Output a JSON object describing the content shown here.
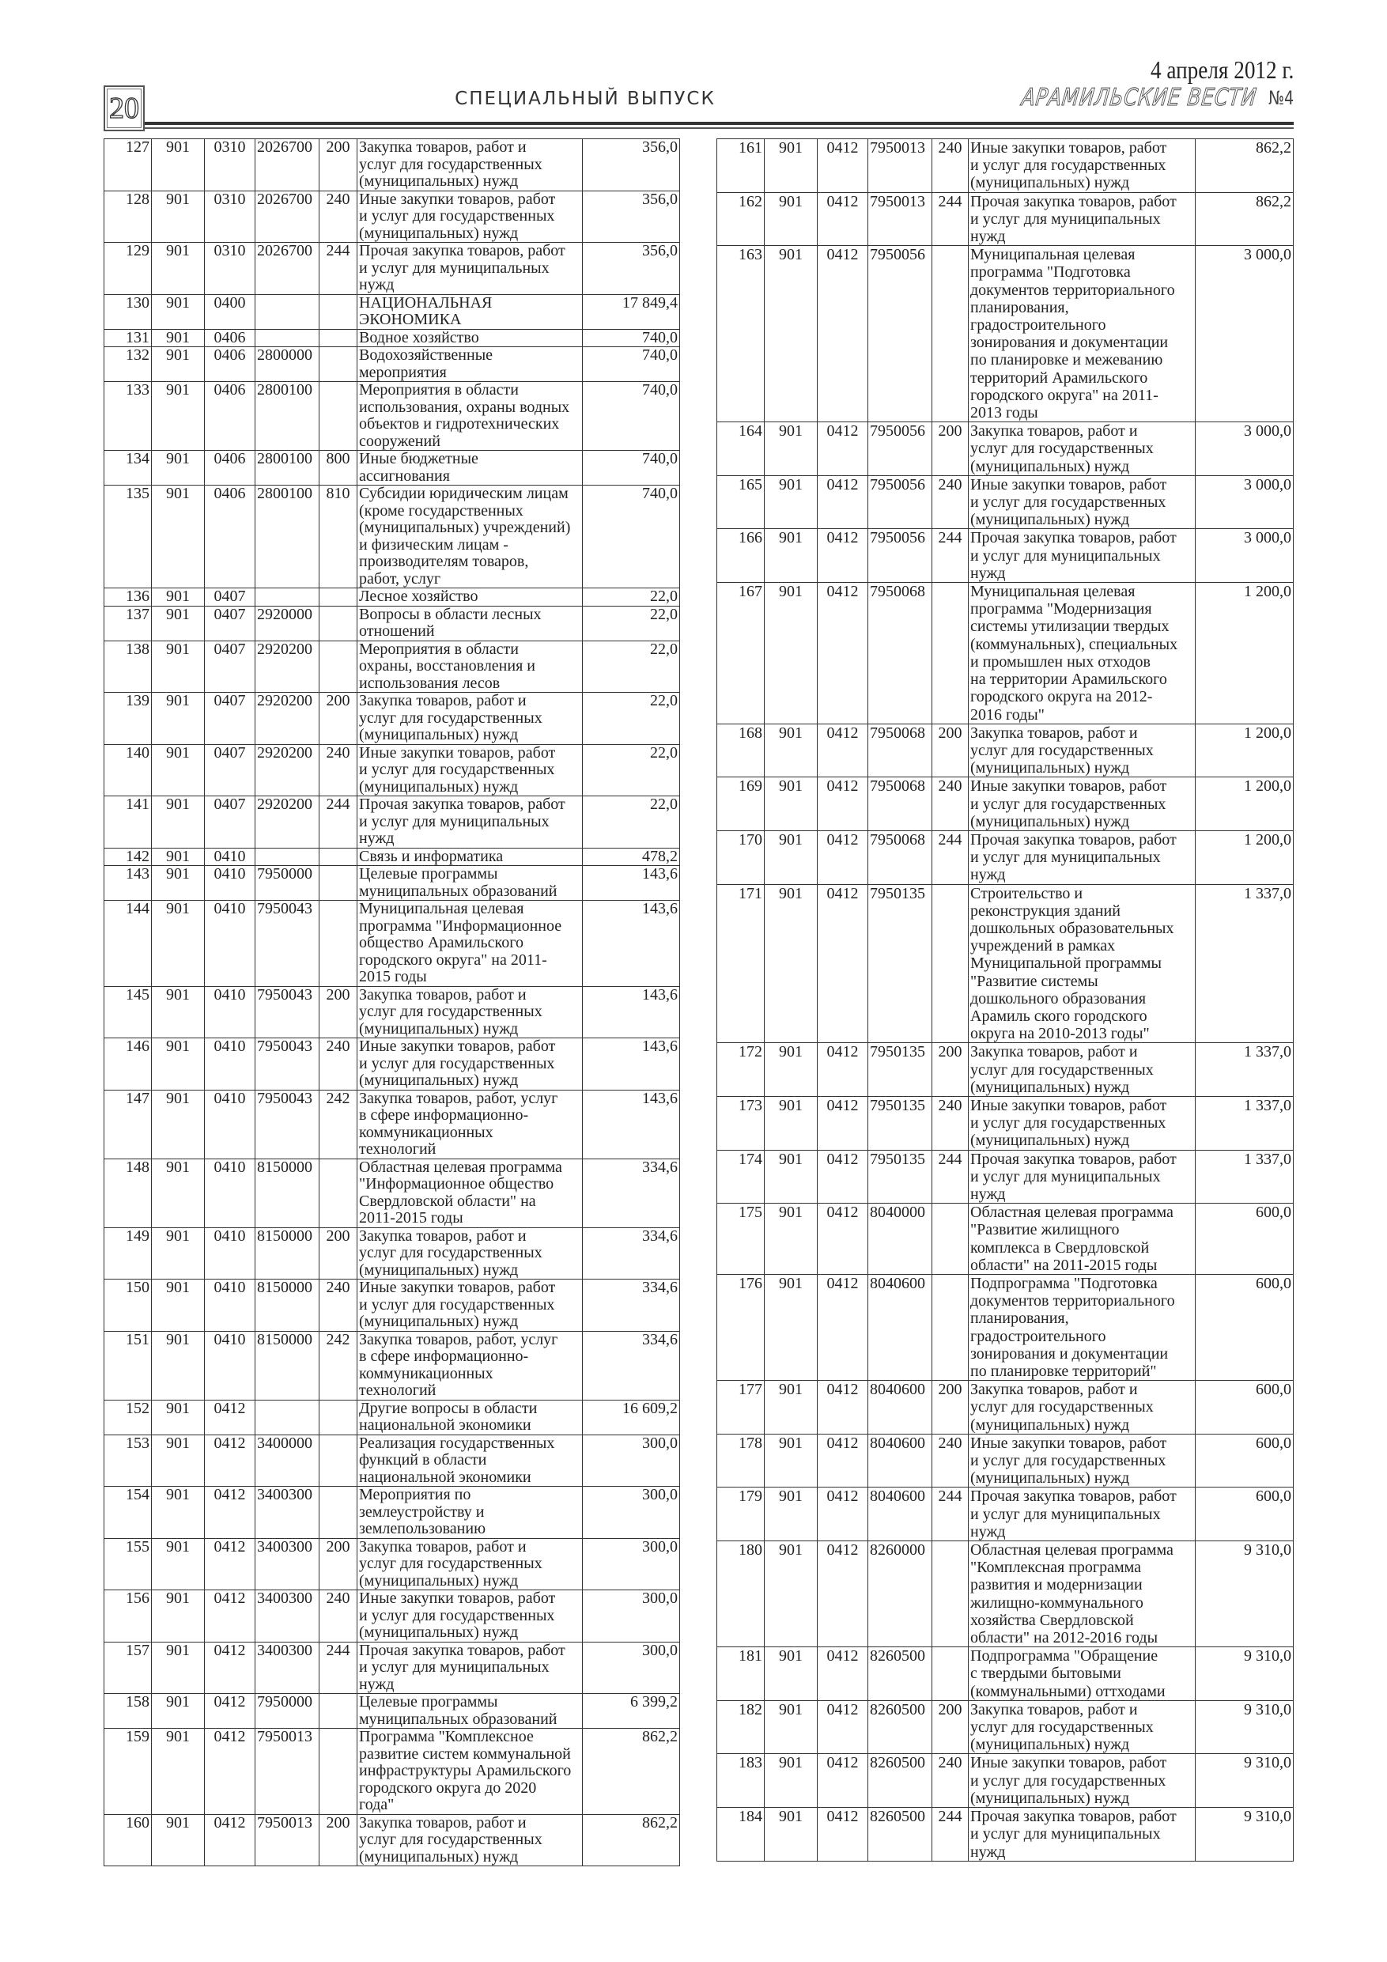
{
  "header": {
    "page_number": "20",
    "section": "СПЕЦИАЛЬНЫЙ ВЫПУСК",
    "date": "4 апреля 2012 г.",
    "newspaper": "АРАМИЛЬСКИЕ ВЕСТИ",
    "issue": "№4"
  },
  "left_table": {
    "rows": [
      [
        "127",
        "901",
        "0310",
        "2026700",
        "200",
        "Закупка товаров, работ и\nуслуг для государственных\n(муниципальных) нужд",
        "356,0"
      ],
      [
        "128",
        "901",
        "0310",
        "2026700",
        "240",
        "Иные закупки товаров, работ\nи услуг для государственных\n(муниципальных) нужд",
        "356,0"
      ],
      [
        "129",
        "901",
        "0310",
        "2026700",
        "244",
        "Прочая закупка товаров, работ\nи услуг для муниципальных\nнужд",
        "356,0"
      ],
      [
        "130",
        "901",
        "0400",
        "",
        "",
        "НАЦИОНАЛЬНАЯ\nЭКОНОМИКА",
        "17 849,4"
      ],
      [
        "131",
        "901",
        "0406",
        "",
        "",
        "Водное хозяйство",
        "740,0"
      ],
      [
        "132",
        "901",
        "0406",
        "2800000",
        "",
        "Водохозяйственные\nмероприятия",
        "740,0"
      ],
      [
        "133",
        "901",
        "0406",
        "2800100",
        "",
        "Мероприятия в области\nиспользования, охраны водных\nобъектов и гидротехнических\nсооружений",
        "740,0"
      ],
      [
        "134",
        "901",
        "0406",
        "2800100",
        "800",
        "Иные бюджетные\nассигнования",
        "740,0"
      ],
      [
        "135",
        "901",
        "0406",
        "2800100",
        "810",
        "Субсидии юридическим лицам\n(кроме государственных\n(муниципальных) учреждений)\nи физическим лицам -\nпроизводителям товаров,\nработ, услуг",
        "740,0"
      ],
      [
        "136",
        "901",
        "0407",
        "",
        "",
        "Лесное хозяйство",
        "22,0"
      ],
      [
        "137",
        "901",
        "0407",
        "2920000",
        "",
        "Вопросы в области лесных\nотношений",
        "22,0"
      ],
      [
        "138",
        "901",
        "0407",
        "2920200",
        "",
        "Мероприятия в области\nохраны, восстановления и\nиспользования лесов",
        "22,0"
      ],
      [
        "139",
        "901",
        "0407",
        "2920200",
        "200",
        "Закупка товаров, работ и\nуслуг для государственных\n(муниципальных) нужд",
        "22,0"
      ],
      [
        "140",
        "901",
        "0407",
        "2920200",
        "240",
        "Иные закупки товаров, работ\nи услуг для государственных\n(муниципальных) нужд",
        "22,0"
      ],
      [
        "141",
        "901",
        "0407",
        "2920200",
        "244",
        "Прочая закупка товаров, работ\nи услуг для муниципальных\nнужд",
        "22,0"
      ],
      [
        "142",
        "901",
        "0410",
        "",
        "",
        "Связь и информатика",
        "478,2"
      ],
      [
        "143",
        "901",
        "0410",
        "7950000",
        "",
        "Целевые программы\nмуниципальных образований",
        "143,6"
      ],
      [
        "144",
        "901",
        "0410",
        "7950043",
        "",
        "Муниципальная целевая\nпрограмма \"Информационное\nобщество Арамильского\nгородского округа\" на 2011-\n2015 годы",
        "143,6"
      ],
      [
        "145",
        "901",
        "0410",
        "7950043",
        "200",
        "Закупка товаров, работ и\nуслуг для государственных\n(муниципальных) нужд",
        "143,6"
      ],
      [
        "146",
        "901",
        "0410",
        "7950043",
        "240",
        "Иные закупки товаров, работ\nи услуг для государственных\n(муниципальных) нужд",
        "143,6"
      ],
      [
        "147",
        "901",
        "0410",
        "7950043",
        "242",
        "Закупка товаров, работ, услуг\nв сфере информационно-\nкоммуникационных\nтехнологий",
        "143,6"
      ],
      [
        "148",
        "901",
        "0410",
        "8150000",
        "",
        "Областная целевая программа\n\"Информационное общество\nСвердловской области\" на\n2011-2015 годы",
        "334,6"
      ],
      [
        "149",
        "901",
        "0410",
        "8150000",
        "200",
        "Закупка товаров, работ и\nуслуг для государственных\n(муниципальных) нужд",
        "334,6"
      ],
      [
        "150",
        "901",
        "0410",
        "8150000",
        "240",
        "Иные закупки товаров, работ\nи услуг для государственных\n(муниципальных) нужд",
        "334,6"
      ],
      [
        "151",
        "901",
        "0410",
        "8150000",
        "242",
        "Закупка товаров, работ, услуг\nв сфере информационно-\nкоммуникационных\nтехнологий",
        "334,6"
      ],
      [
        "152",
        "901",
        "0412",
        "",
        "",
        "Другие вопросы в области\nнациональной экономики",
        "16 609,2"
      ],
      [
        "153",
        "901",
        "0412",
        "3400000",
        "",
        "Реализация государственных\nфункций в области\nнациональной экономики",
        "300,0"
      ],
      [
        "154",
        "901",
        "0412",
        "3400300",
        "",
        "Мероприятия по\nземлеустройству и\nземлепользованию",
        "300,0"
      ],
      [
        "155",
        "901",
        "0412",
        "3400300",
        "200",
        "Закупка товаров, работ и\nуслуг для государственных\n(муниципальных) нужд",
        "300,0"
      ],
      [
        "156",
        "901",
        "0412",
        "3400300",
        "240",
        "Иные закупки товаров, работ\nи услуг для государственных\n(муниципальных) нужд",
        "300,0"
      ],
      [
        "157",
        "901",
        "0412",
        "3400300",
        "244",
        "Прочая закупка товаров, работ\nи услуг для муниципальных\nнужд",
        "300,0"
      ],
      [
        "158",
        "901",
        "0412",
        "7950000",
        "",
        "Целевые программы\nмуниципальных образований",
        "6 399,2"
      ],
      [
        "159",
        "901",
        "0412",
        "7950013",
        "",
        "Программа \"Комплексное\nразвитие систем коммунальной\nинфраструктуры Арамильского\nгородского округа до 2020\nгода\"",
        "862,2"
      ],
      [
        "160",
        "901",
        "0412",
        "7950013",
        "200",
        "Закупка товаров, работ и\nуслуг для государственных\n(муниципальных) нужд",
        "862,2"
      ]
    ]
  },
  "right_table": {
    "rows": [
      [
        "161",
        "901",
        "0412",
        "7950013",
        "240",
        "Иные закупки товаров, работ\nи услуг для государственных\n(муниципальных) нужд",
        "862,2"
      ],
      [
        "162",
        "901",
        "0412",
        "7950013",
        "244",
        "Прочая закупка товаров, работ\nи услуг для муниципальных\nнужд",
        "862,2"
      ],
      [
        "163",
        "901",
        "0412",
        "7950056",
        "",
        "Муниципальная целевая\nпрограмма \"Подготовка\nдокументов территориального\nпланирования,\nградостроительного\nзонирования и документации\nпо планировке и межеванию\nтерриторий Арамильского\nгородского округа\" на 2011-\n2013 годы",
        "3 000,0"
      ],
      [
        "164",
        "901",
        "0412",
        "7950056",
        "200",
        "Закупка товаров, работ и\nуслуг для государственных\n(муниципальных) нужд",
        "3 000,0"
      ],
      [
        "165",
        "901",
        "0412",
        "7950056",
        "240",
        "Иные закупки товаров, работ\nи услуг для государственных\n(муниципальных) нужд",
        "3 000,0"
      ],
      [
        "166",
        "901",
        "0412",
        "7950056",
        "244",
        "Прочая закупка товаров, работ\nи услуг для муниципальных\nнужд",
        "3 000,0"
      ],
      [
        "167",
        "901",
        "0412",
        "7950068",
        "",
        "Муниципальная целевая\nпрограмма \"Модернизация\nсистемы утилизации твердых\n(коммунальных), специальных\nи промышлен ных отходов\nна территории Арамильского\nгородского округа на 2012-\n2016 годы\"",
        "1 200,0"
      ],
      [
        "168",
        "901",
        "0412",
        "7950068",
        "200",
        "Закупка товаров, работ и\nуслуг для государственных\n(муниципальных) нужд",
        "1 200,0"
      ],
      [
        "169",
        "901",
        "0412",
        "7950068",
        "240",
        "Иные закупки товаров, работ\nи услуг для государственных\n(муниципальных) нужд",
        "1 200,0"
      ],
      [
        "170",
        "901",
        "0412",
        "7950068",
        "244",
        "Прочая закупка товаров, работ\nи услуг для муниципальных\nнужд",
        "1 200,0"
      ],
      [
        "171",
        "901",
        "0412",
        "7950135",
        "",
        "Строительство и\nреконструкция зданий\nдошкольных образовательных\nучреждений в рамках\nМуниципальной программы\n\"Развитие системы\nдошкольного образования\nАрамиль ского городского\nокруга на 2010-2013 годы\"",
        "1 337,0"
      ],
      [
        "172",
        "901",
        "0412",
        "7950135",
        "200",
        "Закупка товаров, работ и\nуслуг для государственных\n(муниципальных) нужд",
        "1 337,0"
      ],
      [
        "173",
        "901",
        "0412",
        "7950135",
        "240",
        "Иные закупки товаров, работ\nи услуг для государственных\n(муниципальных) нужд",
        "1 337,0"
      ],
      [
        "174",
        "901",
        "0412",
        "7950135",
        "244",
        "Прочая закупка товаров, работ\nи услуг для муниципальных\nнужд",
        "1 337,0"
      ],
      [
        "175",
        "901",
        "0412",
        "8040000",
        "",
        "Областная целевая программа\n\"Развитие жилищного\nкомплекса в Свердловской\nобласти\" на 2011-2015 годы",
        "600,0"
      ],
      [
        "176",
        "901",
        "0412",
        "8040600",
        "",
        "Подпрограмма \"Подготовка\nдокументов территориального\nпланирования,\nградостроительного\nзонирования и документации\nпо планировке территорий\"",
        "600,0"
      ],
      [
        "177",
        "901",
        "0412",
        "8040600",
        "200",
        "Закупка товаров, работ и\nуслуг для государственных\n(муниципальных) нужд",
        "600,0"
      ],
      [
        "178",
        "901",
        "0412",
        "8040600",
        "240",
        "Иные закупки товаров, работ\nи услуг для государственных\n(муниципальных) нужд",
        "600,0"
      ],
      [
        "179",
        "901",
        "0412",
        "8040600",
        "244",
        "Прочая закупка товаров, работ\nи услуг для муниципальных\nнужд",
        "600,0"
      ],
      [
        "180",
        "901",
        "0412",
        "8260000",
        "",
        "Областная целевая программа\n\"Комплексная программа\nразвития и модернизации\nжилищно-коммунального\nхозяйства Свердловской\nобласти\" на 2012-2016 годы",
        "9 310,0"
      ],
      [
        "181",
        "901",
        "0412",
        "8260500",
        "",
        "Подпрограмма \"Обращение\nс твердыми бытовыми\n(коммунальными) оттходами",
        "9 310,0"
      ],
      [
        "182",
        "901",
        "0412",
        "8260500",
        "200",
        "Закупка товаров, работ и\nуслуг для государственных\n(муниципальных) нужд",
        "9 310,0"
      ],
      [
        "183",
        "901",
        "0412",
        "8260500",
        "240",
        "Иные закупки товаров, работ\nи услуг для государственных\n(муниципальных) нужд",
        "9 310,0"
      ],
      [
        "184",
        "901",
        "0412",
        "8260500",
        "244",
        "Прочая закупка товаров, работ\nи услуг для муниципальных\nнужд",
        "9 310,0"
      ]
    ]
  }
}
